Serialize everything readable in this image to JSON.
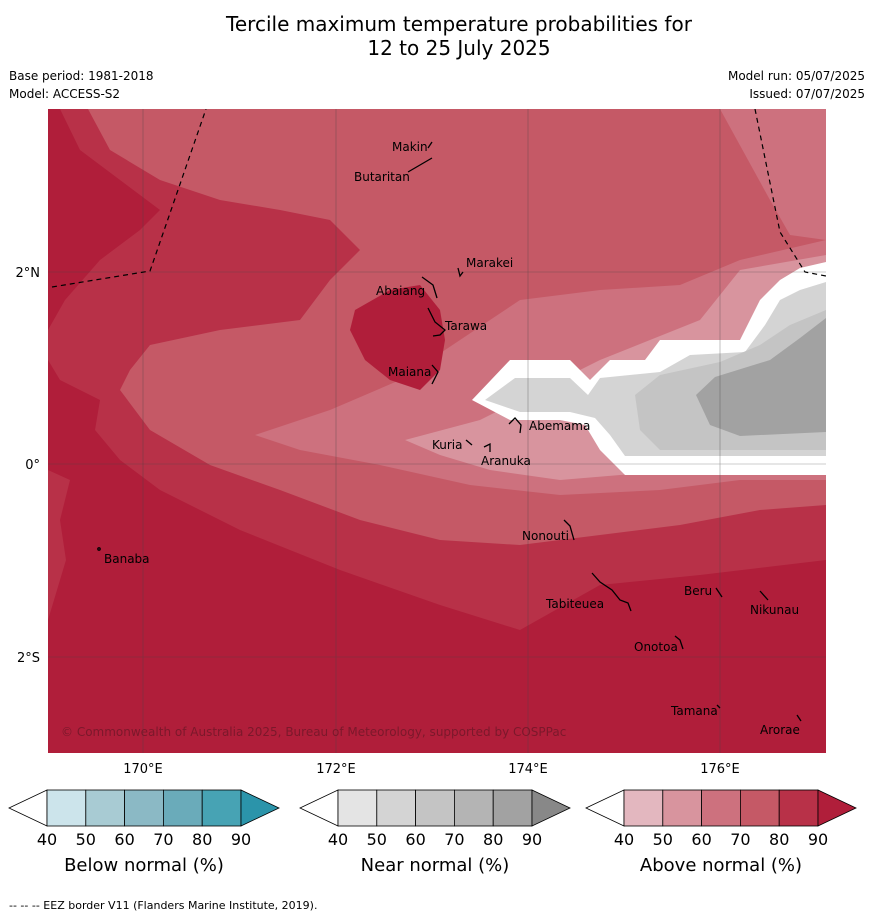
{
  "title": {
    "line1": "Tercile maximum temperature probabilities for",
    "line2": "12 to 25 July 2025"
  },
  "meta": {
    "base_period": "Base period: 1981-2018",
    "model": "Model: ACCESS-S2",
    "model_run": "Model run: 05/07/2025",
    "issued": "Issued: 07/07/2025"
  },
  "map": {
    "copyright": "© Commonwealth of Australia 2025, Bureau of Meteorology, supported by COSPPac",
    "lat_ticks": [
      {
        "value": 2,
        "label": "2°N"
      },
      {
        "value": 0,
        "label": "0°"
      },
      {
        "value": -2,
        "label": "2°S"
      }
    ],
    "lon_ticks": [
      {
        "value": 170,
        "label": "170°E"
      },
      {
        "value": 172,
        "label": "172°E"
      },
      {
        "value": 174,
        "label": "174°E"
      },
      {
        "value": 176,
        "label": "176°E"
      }
    ],
    "extent": {
      "lon": [
        169,
        177.1
      ],
      "lat": [
        -3.0,
        3.8
      ]
    },
    "islands": [
      {
        "name": "Makin",
        "lon": 172.98,
        "lat": 3.1
      },
      {
        "name": "Butaritan",
        "lon": 172.9,
        "lat": 2.95
      },
      {
        "name": "Marakei",
        "lon": 173.3,
        "lat": 2.0
      },
      {
        "name": "Abaiang",
        "lon": 172.95,
        "lat": 1.85
      },
      {
        "name": "Tarawa",
        "lon": 173.0,
        "lat": 1.5
      },
      {
        "name": "Maiana",
        "lon": 173.0,
        "lat": 0.95
      },
      {
        "name": "Abemama",
        "lon": 173.85,
        "lat": 0.4
      },
      {
        "name": "Kuria",
        "lon": 173.4,
        "lat": 0.25
      },
      {
        "name": "Aranuka",
        "lon": 173.6,
        "lat": 0.17
      },
      {
        "name": "Nonouti",
        "lon": 174.4,
        "lat": -0.65
      },
      {
        "name": "Banaba",
        "lon": 169.53,
        "lat": -0.87
      },
      {
        "name": "Tabiteuea",
        "lon": 174.85,
        "lat": -1.35
      },
      {
        "name": "Beru",
        "lon": 176.0,
        "lat": -1.33
      },
      {
        "name": "Nikunau",
        "lon": 176.45,
        "lat": -1.38
      },
      {
        "name": "Onotoa",
        "lon": 175.55,
        "lat": -1.8
      },
      {
        "name": "Tamana",
        "lon": 175.98,
        "lat": -2.5
      },
      {
        "name": "Arorae",
        "lon": 176.82,
        "lat": -2.65
      }
    ]
  },
  "colorbars": [
    {
      "label": "Below normal (%)",
      "ticks": [
        "40",
        "50",
        "60",
        "70",
        "80",
        "90"
      ],
      "colors": [
        "#ffffff",
        "#cce4eb",
        "#a8cbd3",
        "#8bb9c5",
        "#6aabba",
        "#47a3b4",
        "#2b94aa"
      ]
    },
    {
      "label": "Near normal (%)",
      "ticks": [
        "40",
        "50",
        "60",
        "70",
        "80",
        "90"
      ],
      "colors": [
        "#ffffff",
        "#e4e4e4",
        "#d4d4d4",
        "#c4c4c4",
        "#b4b4b4",
        "#a2a2a2",
        "#888888"
      ]
    },
    {
      "label": "Above normal (%)",
      "ticks": [
        "40",
        "50",
        "60",
        "70",
        "80",
        "90"
      ],
      "colors": [
        "#ffffff",
        "#e3b7bf",
        "#d8949e",
        "#cd717e",
        "#c55966",
        "#b83148",
        "#b01e3a"
      ]
    }
  ],
  "footnote": "--  --  -- EEZ border V11 (Flanders Marine Institute, 2019)."
}
